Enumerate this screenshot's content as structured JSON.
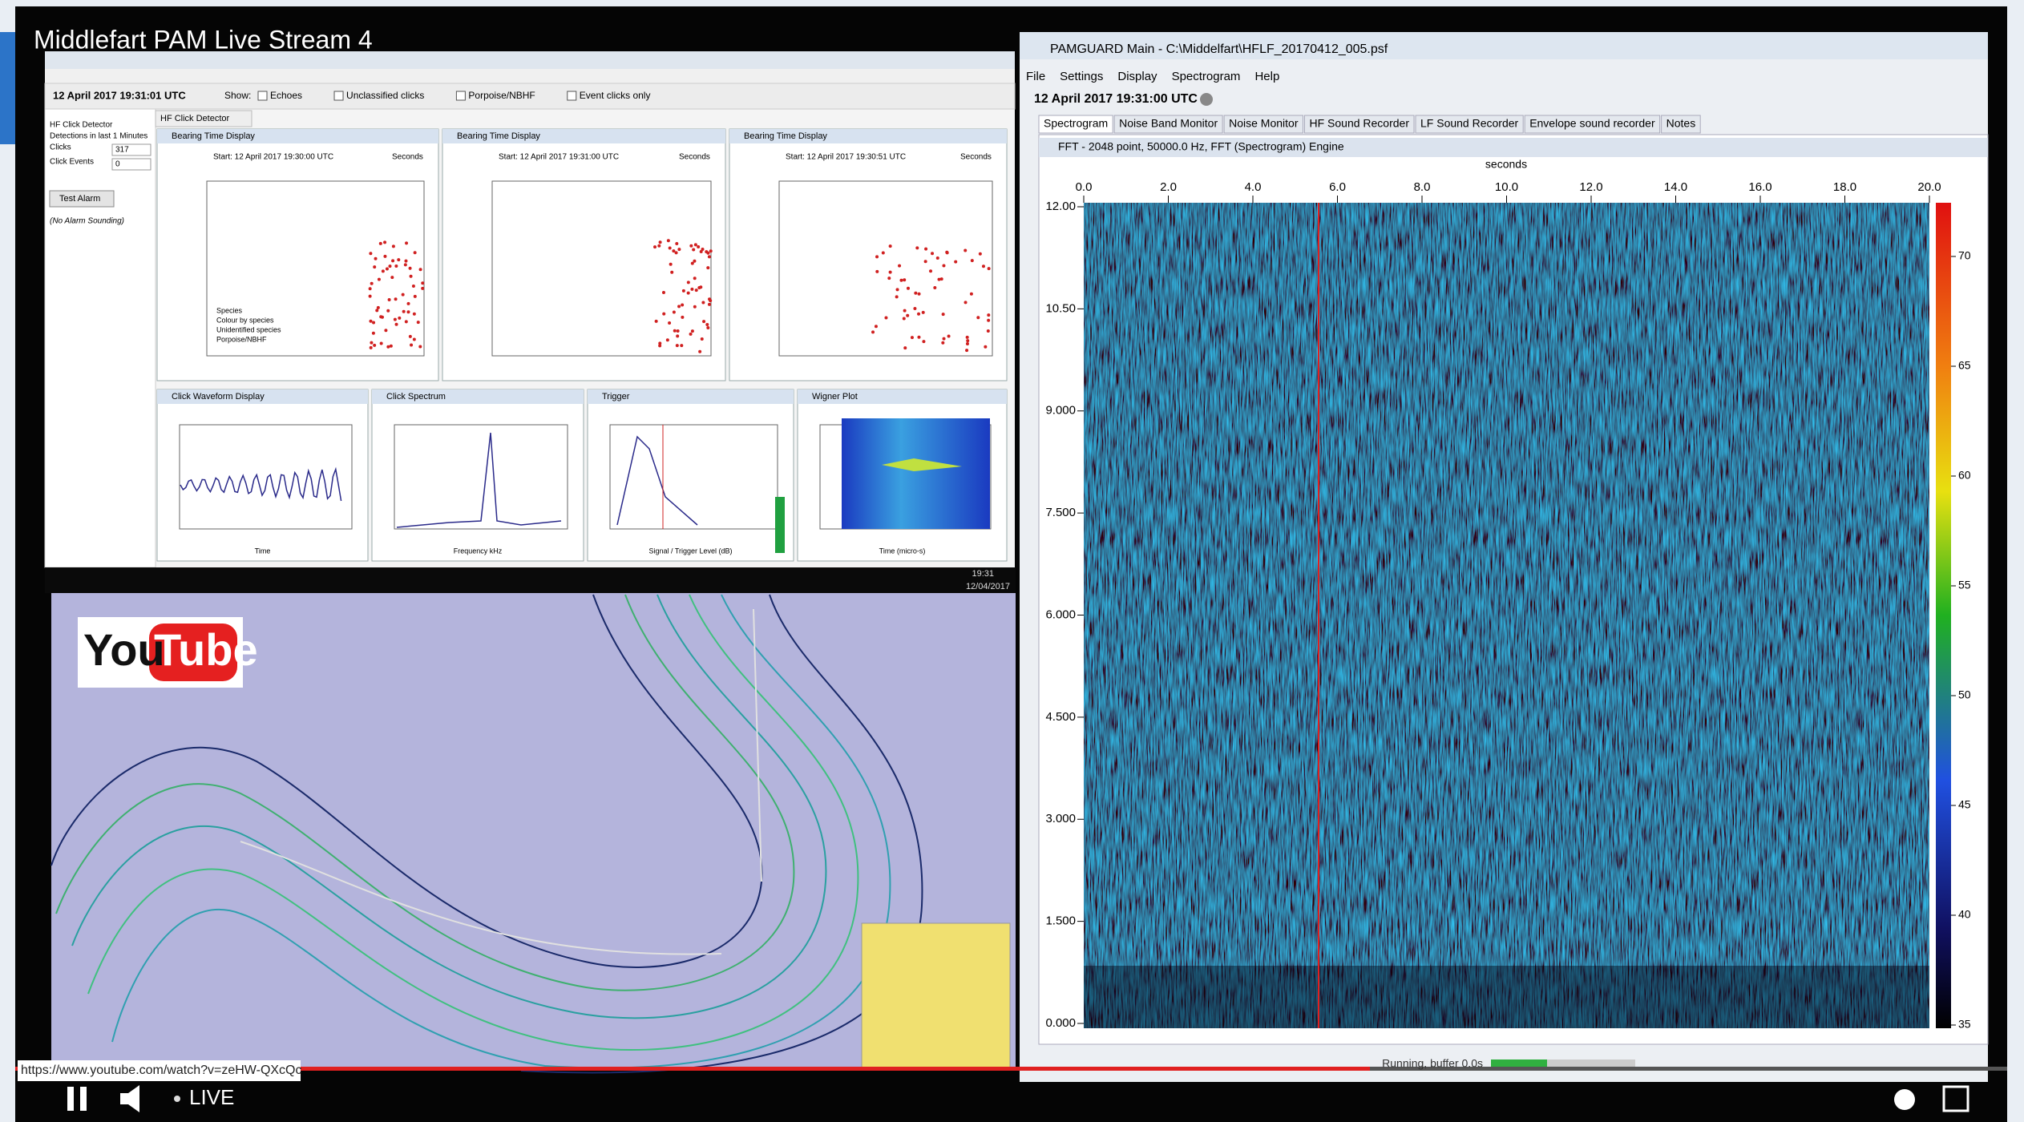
{
  "player": {
    "title": "Middlefart PAM Live Stream 4",
    "url": "https://www.youtube.com/watch?v=zeHW-QXcQc",
    "live": "LIVE",
    "logo_you": "You",
    "logo_tube": "Tube"
  },
  "left_window": {
    "date": "12 April 2017 19:31:01 UTC",
    "show_label": "Show:",
    "show_options": [
      "Echoes",
      "Unclassified clicks",
      "Porpoise/NBHF",
      "Event clicks only"
    ],
    "detector": "HF Click Detector",
    "sidebar": [
      "HF Click Detector",
      "Detections in last 1 Minutes",
      "Clicks",
      "Click Events"
    ],
    "sidebar_values": [
      "317",
      "0"
    ],
    "alarm_button": "Test Alarm",
    "alarm_status": "(No Alarm Sounding)",
    "panels": [
      {
        "title": "Bearing Time Display",
        "subtitle": "Start: 12 April 2017 19:30:00 UTC",
        "unit": "Seconds"
      },
      {
        "title": "Bearing Time Display",
        "subtitle": "Start: 12 April 2017 19:31:00 UTC",
        "unit": "Seconds"
      },
      {
        "title": "Bearing Time Display",
        "subtitle": "Start: 12 April 2017 19:30:51 UTC",
        "unit": "Seconds"
      }
    ],
    "legend": [
      "Species",
      "Colour by species",
      "Unidentified species",
      "Porpoise/NBHF"
    ],
    "bottom_panels": [
      {
        "title": "Click Waveform Display",
        "x_label": "Time"
      },
      {
        "title": "Click Spectrum",
        "x_label": "Frequency kHz"
      },
      {
        "title": "Trigger",
        "x_label": "Signal / Trigger Level (dB)"
      },
      {
        "title": "Wigner Plot",
        "x_label": "Time (micro-s)"
      }
    ]
  },
  "taskbar": {
    "time": "19:31",
    "date": "12/04/2017"
  },
  "right_window": {
    "title": "PAMGUARD Main - C:\\Middelfart\\HFLF_20170412_005.psf",
    "menu": [
      "File",
      "Settings",
      "Display",
      "Spectrogram",
      "Help"
    ],
    "date": "12 April 2017 19:31:00 UTC",
    "tabs": [
      "Spectrogram",
      "Noise Band Monitor",
      "Noise Monitor",
      "HF Sound Recorder",
      "LF Sound Recorder",
      "Envelope sound recorder",
      "Notes"
    ],
    "plot_title": "FFT - 2048 point, 50000.0 Hz, FFT (Spectrogram) Engine",
    "x_label": "seconds",
    "x_ticks": [
      "0.0",
      "2.0",
      "4.0",
      "6.0",
      "8.0",
      "10.0",
      "12.0",
      "14.0",
      "16.0",
      "18.0",
      "20.0"
    ],
    "y_ticks": [
      "12.00",
      "10.50",
      "9.000",
      "7.500",
      "6.000",
      "4.500",
      "3.000",
      "1.500",
      "0.000"
    ],
    "colorbar_ticks": [
      "70",
      "65",
      "60",
      "55",
      "50",
      "45",
      "40",
      "35"
    ],
    "status": "Running, buffer 0.0s"
  }
}
